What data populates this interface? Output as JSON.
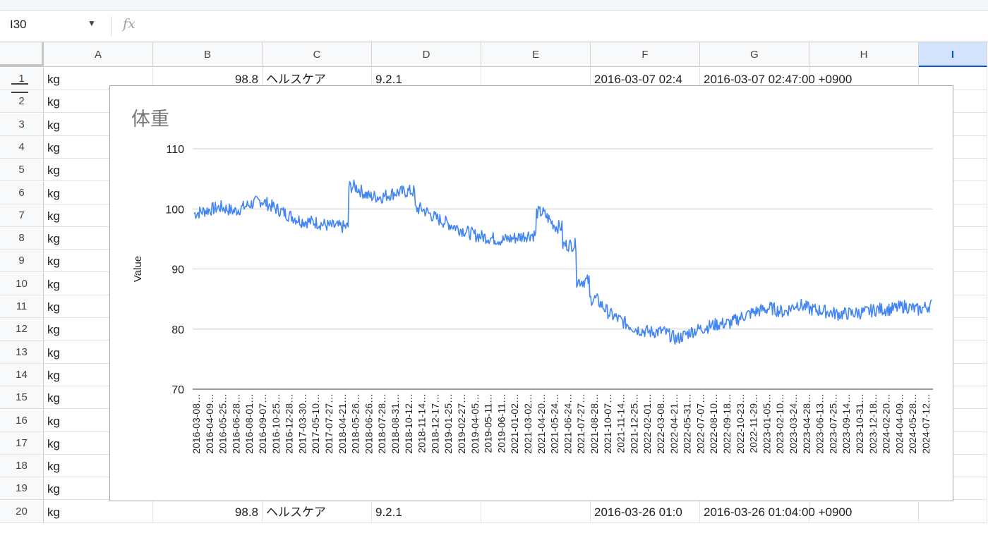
{
  "formula_bar": {
    "cell_ref": "I30",
    "fx_label": "fx"
  },
  "columns": [
    "A",
    "B",
    "C",
    "D",
    "E",
    "F",
    "G",
    "H",
    "I"
  ],
  "selected_column": "I",
  "rows": [
    {
      "num": "1",
      "a": "kg",
      "b": "98.8",
      "c": "ヘルスケア",
      "d": "9.2.1",
      "f": "2016-03-07 02:4",
      "g": "2016-03-07 02:47:00 +0900"
    },
    {
      "num": "2",
      "a": "kg"
    },
    {
      "num": "3",
      "a": "kg"
    },
    {
      "num": "4",
      "a": "kg"
    },
    {
      "num": "5",
      "a": "kg"
    },
    {
      "num": "6",
      "a": "kg"
    },
    {
      "num": "7",
      "a": "kg"
    },
    {
      "num": "8",
      "a": "kg"
    },
    {
      "num": "9",
      "a": "kg"
    },
    {
      "num": "10",
      "a": "kg"
    },
    {
      "num": "11",
      "a": "kg"
    },
    {
      "num": "12",
      "a": "kg"
    },
    {
      "num": "13",
      "a": "kg"
    },
    {
      "num": "14",
      "a": "kg"
    },
    {
      "num": "15",
      "a": "kg"
    },
    {
      "num": "16",
      "a": "kg"
    },
    {
      "num": "17",
      "a": "kg"
    },
    {
      "num": "18",
      "a": "kg"
    },
    {
      "num": "19",
      "a": "kg"
    },
    {
      "num": "20",
      "a": "kg",
      "b": "98.8",
      "c": "ヘルスケア",
      "d": "9.2.1",
      "f": "2016-03-26 01:0",
      "g": "2016-03-26 01:04:00 +0900"
    }
  ],
  "chart_data": {
    "type": "line",
    "title": "体重",
    "xlabel": "",
    "ylabel": "Value",
    "ylim": [
      70,
      110
    ],
    "yticks": [
      70,
      80,
      90,
      100,
      110
    ],
    "grid": true,
    "legend": "none",
    "line_color": "#4285f4",
    "x_tick_labels": [
      "2016-03-08…",
      "2016-04-09…",
      "2016-05-25…",
      "2016-06-28…",
      "2016-08-01…",
      "2016-09-07…",
      "2016-10-25…",
      "2016-12-28…",
      "2017-03-30…",
      "2017-05-10…",
      "2017-07-27…",
      "2018-04-21…",
      "2018-05-26…",
      "2018-06-26…",
      "2018-07-28…",
      "2018-08-31…",
      "2018-10-12…",
      "2018-11-14…",
      "2018-12-17…",
      "2019-01-25…",
      "2019-02-27…",
      "2019-04-05…",
      "2019-05-11…",
      "2019-06-11…",
      "2021-01-02…",
      "2021-03-02…",
      "2021-04-20…",
      "2021-05-24…",
      "2021-06-24…",
      "2021-07-27…",
      "2021-08-28…",
      "2021-10-07…",
      "2021-11-14…",
      "2021-12-25…",
      "2022-02-01…",
      "2022-03-08…",
      "2022-04-21…",
      "2022-05-31…",
      "2022-07-07…",
      "2022-08-10…",
      "2022-09-18…",
      "2022-10-23…",
      "2022-11-29…",
      "2023-01-05…",
      "2023-02-10…",
      "2023-03-24…",
      "2023-04-28…",
      "2023-06-13…",
      "2023-07-25…",
      "2023-09-14…",
      "2023-10-31…",
      "2023-12-18…",
      "2024-02-20…",
      "2024-04-09…",
      "2024-05-28…",
      "2024-07-12…"
    ],
    "series": [
      {
        "values": [
          99.2,
          99.8,
          100.3,
          99.6,
          100.6,
          101.4,
          100.2,
          99.0,
          98.0,
          97.8,
          97.2,
          97.0,
          103.7,
          102.1,
          102.0,
          102.7,
          102.9,
          100.0,
          98.5,
          97.5,
          96.5,
          95.6,
          95.2,
          94.8,
          95.2,
          95.7,
          99.4,
          97.0,
          94.0,
          88.0,
          85.0,
          82.5,
          81.2,
          80.0,
          79.5,
          79.6,
          78.3,
          79.5,
          80.2,
          80.8,
          81.0,
          82.2,
          83.0,
          83.5,
          82.8,
          84.2,
          83.3,
          83.0,
          82.5,
          82.6,
          82.8,
          83.3,
          83.3,
          83.8,
          83.2,
          84.0
        ]
      }
    ]
  }
}
